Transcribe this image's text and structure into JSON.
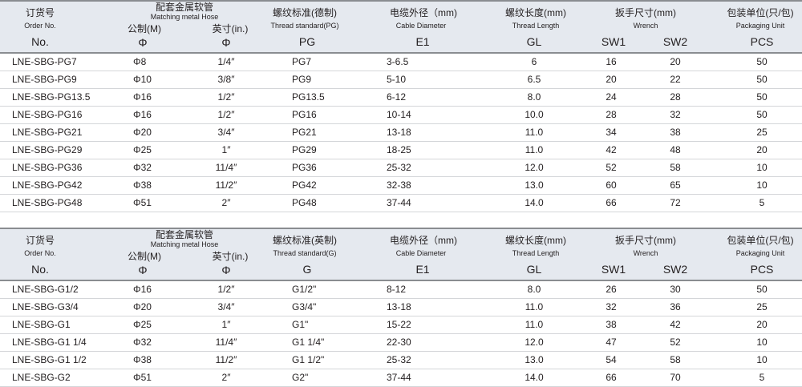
{
  "header": {
    "order_cn": "订货号",
    "order_en": "Order No.",
    "order_sym": "No.",
    "hose_cn": "配套金属软管",
    "hose_en": "Matching metal Hose",
    "metric_cn": "公制(M)",
    "metric_sym": "Φ",
    "inch_cn": "英寸(in.)",
    "inch_sym": "Φ",
    "cable_cn": "电缆外径（mm)",
    "cable_en": "Cable Diameter",
    "cable_sym": "E1",
    "tlen_cn": "螺纹长度(mm)",
    "tlen_en": "Thread  Length",
    "tlen_sym": "GL",
    "wrench_cn": "扳手尺寸(mm)",
    "wrench_en": "Wrench",
    "sw1": "SW1",
    "sw2": "SW2",
    "pack_cn": "包装单位(只/包)",
    "pack_en": "Packaging Unit",
    "pack_sym": "PCS"
  },
  "table1": {
    "thread_cn": "螺纹标准(德制)",
    "thread_en": "Thread standard(PG)",
    "thread_sym": "PG",
    "rows": [
      [
        "LNE-SBG-PG7",
        "Φ8",
        "1/4″",
        "PG7",
        "3-6.5",
        "6",
        "16",
        "20",
        "50"
      ],
      [
        "LNE-SBG-PG9",
        "Φ10",
        "3/8″",
        "PG9",
        "5-10",
        "6.5",
        "20",
        "22",
        "50"
      ],
      [
        "LNE-SBG-PG13.5",
        "Φ16",
        "1/2″",
        "PG13.5",
        "6-12",
        "8.0",
        "24",
        "28",
        "50"
      ],
      [
        "LNE-SBG-PG16",
        "Φ16",
        "1/2″",
        "PG16",
        "10-14",
        "10.0",
        "28",
        "32",
        "50"
      ],
      [
        "LNE-SBG-PG21",
        "Φ20",
        "3/4″",
        "PG21",
        "13-18",
        "11.0",
        "34",
        "38",
        "25"
      ],
      [
        "LNE-SBG-PG29",
        "Φ25",
        "1″",
        "PG29",
        "18-25",
        "11.0",
        "42",
        "48",
        "20"
      ],
      [
        "LNE-SBG-PG36",
        "Φ32",
        "11/4″",
        "PG36",
        "25-32",
        "12.0",
        "52",
        "58",
        "10"
      ],
      [
        "LNE-SBG-PG42",
        "Φ38",
        "11/2″",
        "PG42",
        "32-38",
        "13.0",
        "60",
        "65",
        "10"
      ],
      [
        "LNE-SBG-PG48",
        "Φ51",
        "2″",
        "PG48",
        "37-44",
        "14.0",
        "66",
        "72",
        "5"
      ]
    ]
  },
  "table2": {
    "thread_cn": "螺纹标准(英制)",
    "thread_en": "Thread standard(G)",
    "thread_sym": "G",
    "rows": [
      [
        "LNE-SBG-G1/2",
        "Φ16",
        "1/2″",
        "G1/2\"",
        "8-12",
        "8.0",
        "26",
        "30",
        "50"
      ],
      [
        "LNE-SBG-G3/4",
        "Φ20",
        "3/4″",
        "G3/4\"",
        "13-18",
        "11.0",
        "32",
        "36",
        "25"
      ],
      [
        "LNE-SBG-G1",
        "Φ25",
        "1″",
        "G1\"",
        "15-22",
        "11.0",
        "38",
        "42",
        "20"
      ],
      [
        "LNE-SBG-G1 1/4",
        "Φ32",
        "11/4″",
        "G1 1/4\"",
        "22-30",
        "12.0",
        "47",
        "52",
        "10"
      ],
      [
        "LNE-SBG-G1 1/2",
        "Φ38",
        "11/2″",
        "G1 1/2\"",
        "25-32",
        "13.0",
        "54",
        "58",
        "10"
      ],
      [
        "LNE-SBG-G2",
        "Φ51",
        "2″",
        "G2\"",
        "37-44",
        "14.0",
        "66",
        "70",
        "5"
      ]
    ]
  }
}
